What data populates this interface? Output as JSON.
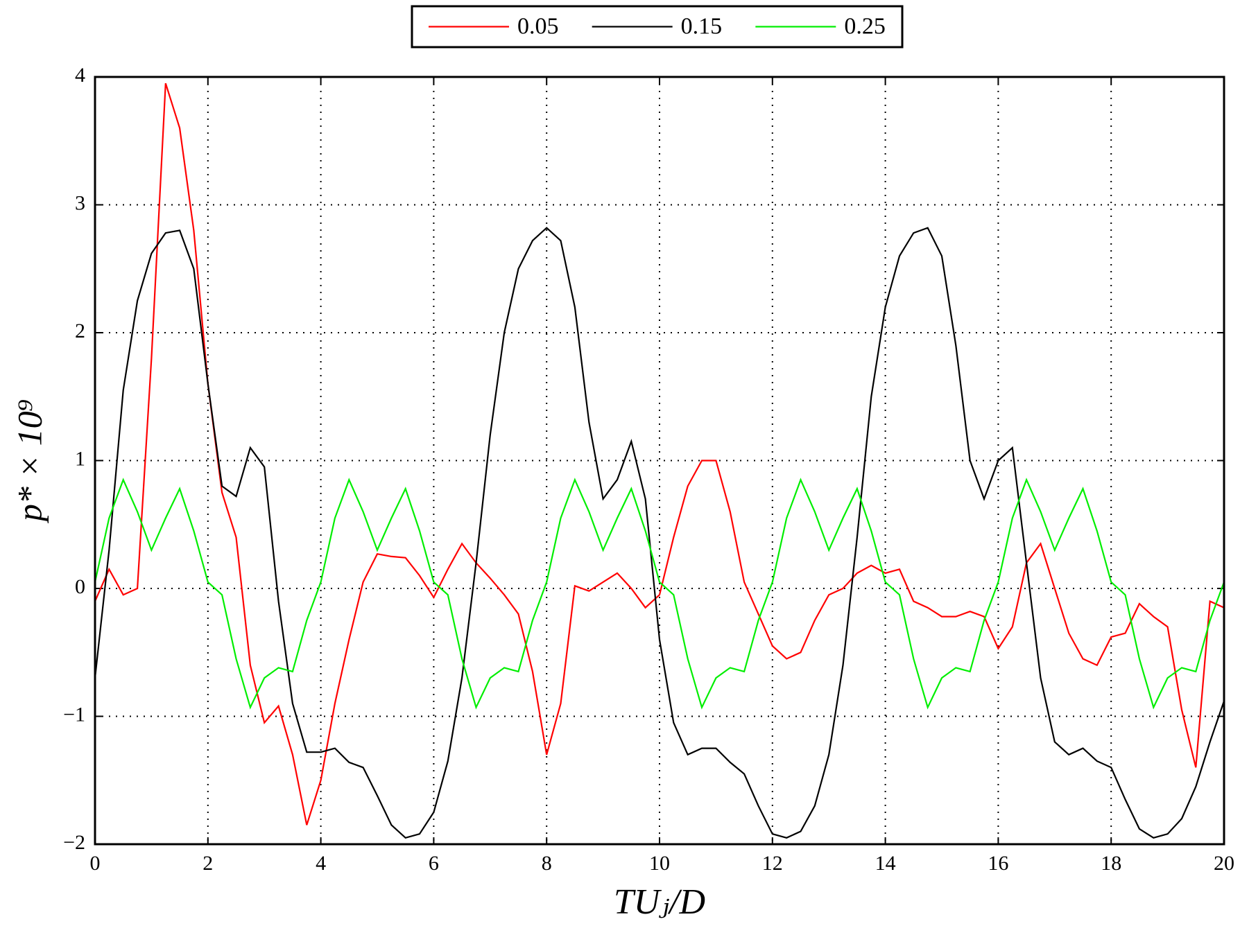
{
  "chart_data": {
    "type": "line",
    "xlabel": "TUⱼ/D",
    "ylabel": "p* × 10⁹",
    "x": [
      0,
      0.25,
      0.5,
      0.75,
      1,
      1.25,
      1.5,
      1.75,
      2,
      2.25,
      2.5,
      2.75,
      3,
      3.25,
      3.5,
      3.75,
      4,
      4.25,
      4.5,
      4.75,
      5,
      5.25,
      5.5,
      5.75,
      6,
      6.25,
      6.5,
      6.75,
      7,
      7.25,
      7.5,
      7.75,
      8,
      8.25,
      8.5,
      8.75,
      9,
      9.25,
      9.5,
      9.75,
      10,
      10.25,
      10.5,
      10.75,
      11,
      11.25,
      11.5,
      11.75,
      12,
      12.25,
      12.5,
      12.75,
      13,
      13.25,
      13.5,
      13.75,
      14,
      14.25,
      14.5,
      14.75,
      15,
      15.25,
      15.5,
      15.75,
      16,
      16.25,
      16.5,
      16.75,
      17,
      17.25,
      17.5,
      17.75,
      18,
      18.25,
      18.5,
      18.75,
      19,
      19.25,
      19.5,
      19.75,
      20
    ],
    "series": [
      {
        "name": "0.05",
        "color": "#ff0000",
        "values": [
          -0.1,
          0.15,
          -0.05,
          0.0,
          1.8,
          3.95,
          3.6,
          2.8,
          1.6,
          0.75,
          0.4,
          -0.6,
          -1.05,
          -0.92,
          -1.3,
          -1.85,
          -1.5,
          -0.9,
          -0.4,
          0.05,
          0.27,
          0.25,
          0.24,
          0.1,
          -0.07,
          0.15,
          0.35,
          0.2,
          0.08,
          -0.05,
          -0.2,
          -0.65,
          -1.3,
          -0.9,
          0.02,
          -0.02,
          0.05,
          0.12,
          0.0,
          -0.15,
          -0.05,
          0.4,
          0.8,
          1.0,
          1.0,
          0.6,
          0.05,
          -0.2,
          -0.45,
          -0.55,
          -0.5,
          -0.25,
          -0.05,
          0.0,
          0.12,
          0.18,
          0.12,
          0.15,
          -0.1,
          -0.15,
          -0.22,
          -0.22,
          -0.18,
          -0.22,
          -0.47,
          -0.3,
          0.2,
          0.35,
          0.0,
          -0.35,
          -0.55,
          -0.6,
          -0.38,
          -0.35,
          -0.12,
          -0.22,
          -0.3,
          -0.95,
          -1.4,
          -0.1,
          -0.15
        ]
      },
      {
        "name": "0.15",
        "color": "#000000",
        "values": [
          -0.7,
          0.3,
          1.55,
          2.25,
          2.62,
          2.78,
          2.8,
          2.5,
          1.6,
          0.8,
          0.72,
          1.1,
          0.95,
          -0.1,
          -0.9,
          -1.28,
          -1.28,
          -1.25,
          -1.36,
          -1.4,
          -1.62,
          -1.85,
          -1.95,
          -1.92,
          -1.75,
          -1.35,
          -0.7,
          0.2,
          1.2,
          2.0,
          2.5,
          2.72,
          2.82,
          2.72,
          2.2,
          1.3,
          0.7,
          0.85,
          1.15,
          0.7,
          -0.4,
          -1.05,
          -1.3,
          -1.25,
          -1.25,
          -1.36,
          -1.45,
          -1.7,
          -1.92,
          -1.95,
          -1.9,
          -1.7,
          -1.3,
          -0.6,
          0.4,
          1.5,
          2.2,
          2.6,
          2.78,
          2.82,
          2.6,
          1.9,
          1.0,
          0.7,
          1.0,
          1.1,
          0.2,
          -0.7,
          -1.2,
          -1.3,
          -1.25,
          -1.35,
          -1.4,
          -1.65,
          -1.88,
          -1.95,
          -1.92,
          -1.8,
          -1.55,
          -1.2,
          -0.88
        ]
      },
      {
        "name": "0.25",
        "color": "#00ee00",
        "values": [
          0.05,
          0.55,
          0.85,
          0.6,
          0.3,
          0.55,
          0.78,
          0.45,
          0.05,
          -0.05,
          -0.55,
          -0.93,
          -0.7,
          -0.62,
          -0.65,
          -0.25,
          0.05,
          0.55,
          0.85,
          0.6,
          0.3,
          0.55,
          0.78,
          0.45,
          0.05,
          -0.05,
          -0.55,
          -0.93,
          -0.7,
          -0.62,
          -0.65,
          -0.25,
          0.05,
          0.55,
          0.85,
          0.6,
          0.3,
          0.55,
          0.78,
          0.45,
          0.05,
          -0.05,
          -0.55,
          -0.93,
          -0.7,
          -0.62,
          -0.65,
          -0.25,
          0.05,
          0.55,
          0.85,
          0.6,
          0.3,
          0.55,
          0.78,
          0.45,
          0.05,
          -0.05,
          -0.55,
          -0.93,
          -0.7,
          -0.62,
          -0.65,
          -0.25,
          0.05,
          0.55,
          0.85,
          0.6,
          0.3,
          0.55,
          0.78,
          0.45,
          0.05,
          -0.05,
          -0.55,
          -0.93,
          -0.7,
          -0.62,
          -0.65,
          -0.25,
          0.05
        ]
      }
    ],
    "xlim": [
      0,
      20
    ],
    "xticks": [
      0,
      2,
      4,
      6,
      8,
      10,
      12,
      14,
      16,
      18,
      20
    ],
    "ylim": [
      -2,
      4
    ],
    "yticks": [
      {
        "value": -2,
        "label": "−2"
      },
      {
        "value": -1,
        "label": "−1"
      },
      0,
      1,
      2,
      3,
      4
    ],
    "grid": true,
    "legend": "top"
  }
}
